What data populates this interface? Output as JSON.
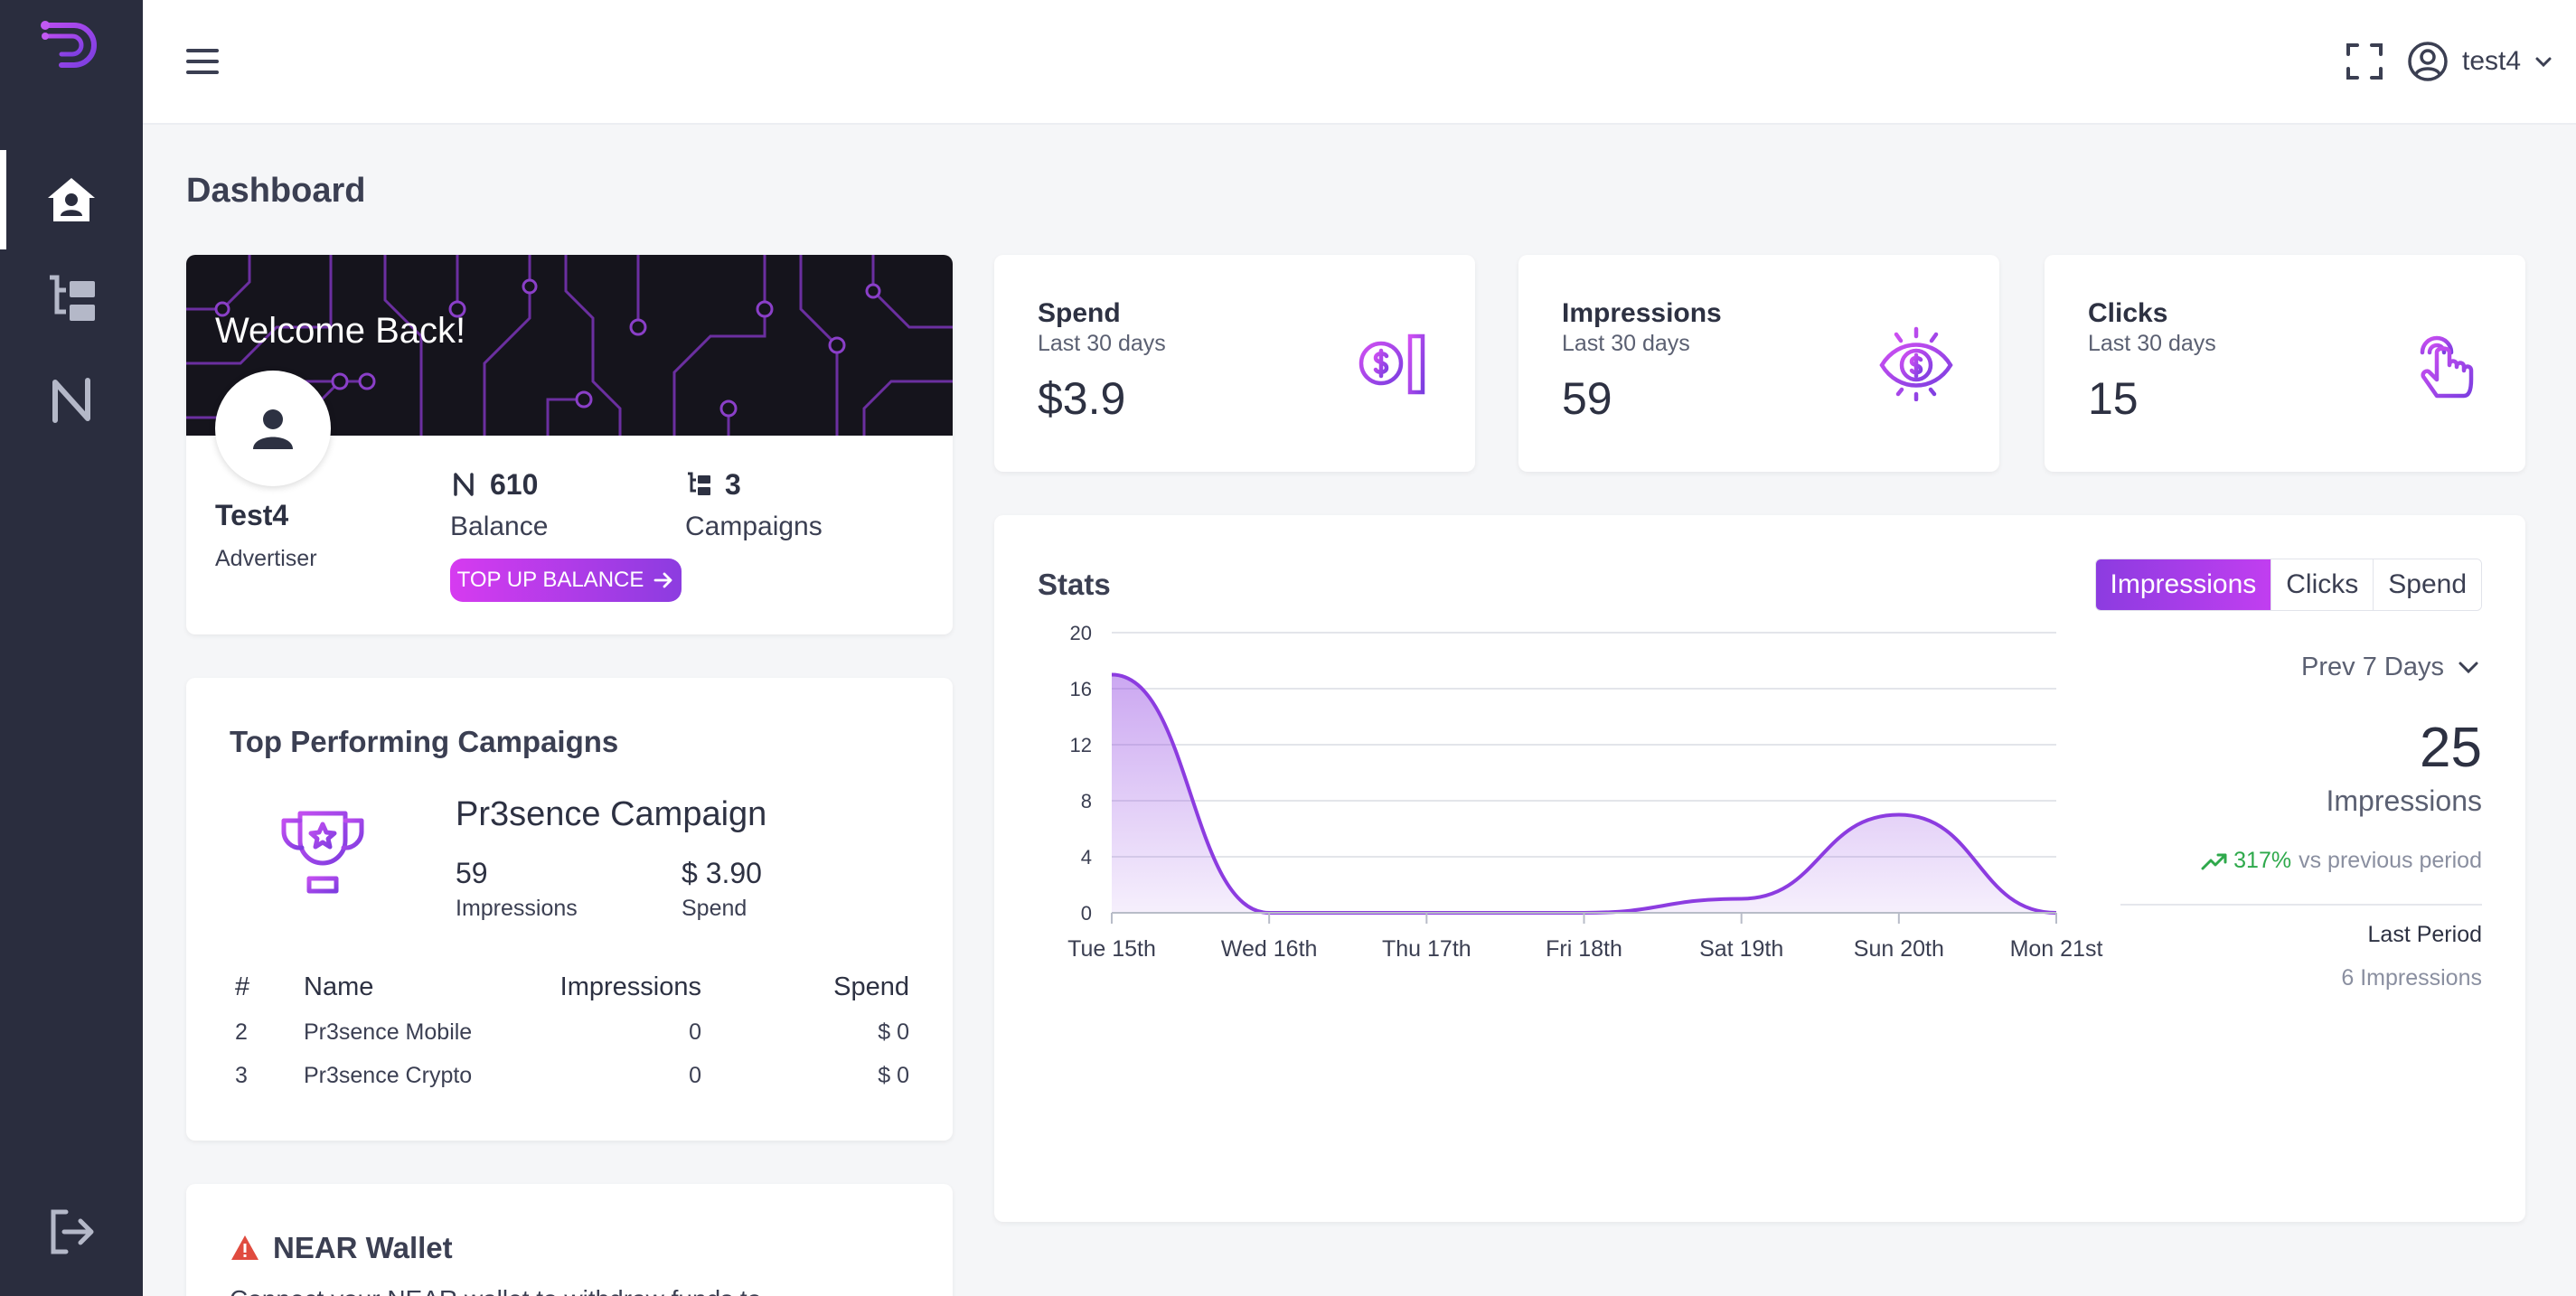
{
  "colors": {
    "sidebar": "#2a2d3e",
    "accent": "#8c3ce0",
    "accent_pink": "#d63bf0",
    "positive": "#2ea94b"
  },
  "header": {
    "user_name": "test4"
  },
  "page": {
    "title": "Dashboard"
  },
  "welcome": {
    "greeting": "Welcome Back!",
    "name": "Test4",
    "role": "Advertiser",
    "balance_value": "610",
    "balance_label": "Balance",
    "campaigns_value": "3",
    "campaigns_label": "Campaigns",
    "topup_label": "TOP UP BALANCE"
  },
  "top_campaigns": {
    "title": "Top Performing Campaigns",
    "featured": {
      "name": "Pr3sence Campaign",
      "impressions": "59",
      "impressions_label": "Impressions",
      "spend": "$ 3.90",
      "spend_label": "Spend"
    },
    "columns": {
      "num": "#",
      "name": "Name",
      "impressions": "Impressions",
      "spend": "Spend"
    },
    "rows": [
      {
        "num": "2",
        "name": "Pr3sence Mobile",
        "impressions": "0",
        "spend": "$ 0"
      },
      {
        "num": "3",
        "name": "Pr3sence Crypto",
        "impressions": "0",
        "spend": "$ 0"
      }
    ]
  },
  "near_wallet": {
    "title": "NEAR Wallet",
    "text": "Connect your NEAR wallet to withdraw funds to"
  },
  "kpis": {
    "spend": {
      "title": "Spend",
      "sub": "Last 30 days",
      "value": "$3.9",
      "icon": "coin-icon"
    },
    "impressions": {
      "title": "Impressions",
      "sub": "Last 30 days",
      "value": "59",
      "icon": "eye-dollar-icon"
    },
    "clicks": {
      "title": "Clicks",
      "sub": "Last 30 days",
      "value": "15",
      "icon": "tap-icon"
    }
  },
  "stats": {
    "title": "Stats",
    "tabs": [
      "Impressions",
      "Clicks",
      "Spend"
    ],
    "period": "Prev 7 Days",
    "total": "25",
    "total_label": "Impressions",
    "change_pct": "317%",
    "change_text": "vs previous period",
    "last_period_label": "Last Period",
    "last_period_value": "6 Impressions"
  },
  "chart_data": {
    "type": "area",
    "categories": [
      "Tue 15th",
      "Wed 16th",
      "Thu 17th",
      "Fri 18th",
      "Sat 19th",
      "Sun 20th",
      "Mon 21st"
    ],
    "values": [
      17,
      0,
      0,
      0,
      1,
      7,
      0
    ],
    "ylim": [
      0,
      20
    ],
    "yticks": [
      "0",
      "4",
      "8",
      "12",
      "16",
      "20"
    ],
    "grid": true,
    "color": "#8c3ce0"
  }
}
